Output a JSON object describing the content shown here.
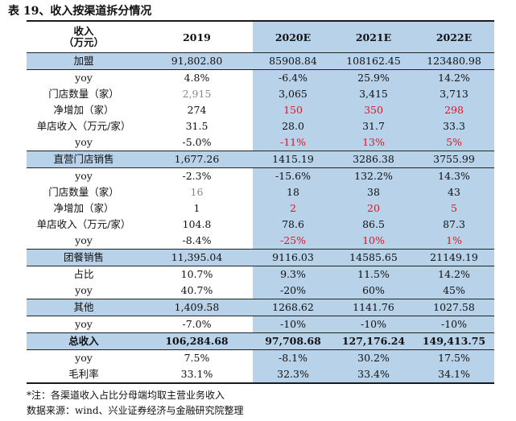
{
  "title": "表 19、收入按渠道拆分情况",
  "header": {
    "label_line1": "收入",
    "label_line2": "（万元）",
    "years": [
      "2019",
      "2020E",
      "2021E",
      "2022E"
    ]
  },
  "rows": [
    {
      "label": "加盟",
      "kind": "sec",
      "values": [
        "91,802.80",
        "85908.84",
        "108162.45",
        "123480.98"
      ]
    },
    {
      "label": "yoy",
      "values": [
        "4.8%",
        "-6.4%",
        "25.9%",
        "14.2%"
      ]
    },
    {
      "label": "门店数量（家）",
      "values": [
        "2,915",
        "3,065",
        "3,415",
        "3,713"
      ],
      "gray": [
        0
      ]
    },
    {
      "label": "净增加（家）",
      "values": [
        "274",
        "150",
        "350",
        "298"
      ],
      "red": [
        1,
        2,
        3
      ]
    },
    {
      "label": "单店收入（万元/家）",
      "values": [
        "31.5",
        "28.0",
        "31.7",
        "33.3"
      ]
    },
    {
      "label": "yoy",
      "values": [
        "-5.0%",
        "-11%",
        "13%",
        "5%"
      ],
      "red": [
        1,
        2,
        3
      ]
    },
    {
      "label": "直营门店销售",
      "kind": "sec",
      "values": [
        "1,677.26",
        "1415.19",
        "3286.38",
        "3755.99"
      ]
    },
    {
      "label": "yoy",
      "values": [
        "-2.3%",
        "-15.6%",
        "132.2%",
        "14.3%"
      ]
    },
    {
      "label": "门店数量（家）",
      "values": [
        "16",
        "18",
        "38",
        "43"
      ],
      "gray": [
        0
      ]
    },
    {
      "label": "净增加（家）",
      "values": [
        "1",
        "2",
        "20",
        "5"
      ],
      "red": [
        1,
        2,
        3
      ]
    },
    {
      "label": "单店收入（万元/家）",
      "values": [
        "104.8",
        "78.6",
        "86.5",
        "87.3"
      ]
    },
    {
      "label": "yoy",
      "values": [
        "-8.4%",
        "-25%",
        "10%",
        "1%"
      ],
      "red": [
        1,
        2,
        3
      ]
    },
    {
      "label": "团餐销售",
      "kind": "sec",
      "values": [
        "11,395.04",
        "9116.03",
        "14585.65",
        "21149.19"
      ]
    },
    {
      "label": "占比",
      "values": [
        "10.7%",
        "9.3%",
        "11.5%",
        "14.2%"
      ]
    },
    {
      "label": "yoy",
      "values": [
        "40.7%",
        "-20%",
        "60%",
        "45%"
      ]
    },
    {
      "label": "其他",
      "kind": "sec",
      "values": [
        "1,409.58",
        "1268.62",
        "1141.76",
        "1027.58"
      ]
    },
    {
      "label": "yoy",
      "values": [
        "-7.0%",
        "-10%",
        "-10%",
        "-10%"
      ]
    },
    {
      "label": "总收入",
      "kind": "total",
      "values": [
        "106,284.68",
        "97,708.68",
        "127,176.24",
        "149,413.75"
      ]
    },
    {
      "label": "yoy",
      "values": [
        "7.5%",
        "-8.1%",
        "30.2%",
        "17.5%"
      ]
    },
    {
      "label": "毛利率",
      "kind": "last",
      "values": [
        "33.1%",
        "32.3%",
        "33.4%",
        "34.1%"
      ]
    }
  ],
  "notes": {
    "note": "*注：各渠道收入占比分母端均取主营业务收入",
    "source": "数据来源：wind、兴业证券经济与金融研究院整理"
  },
  "colors": {
    "forecast_fill": "#b8d2ea",
    "highlight_red": "#e8141e"
  }
}
